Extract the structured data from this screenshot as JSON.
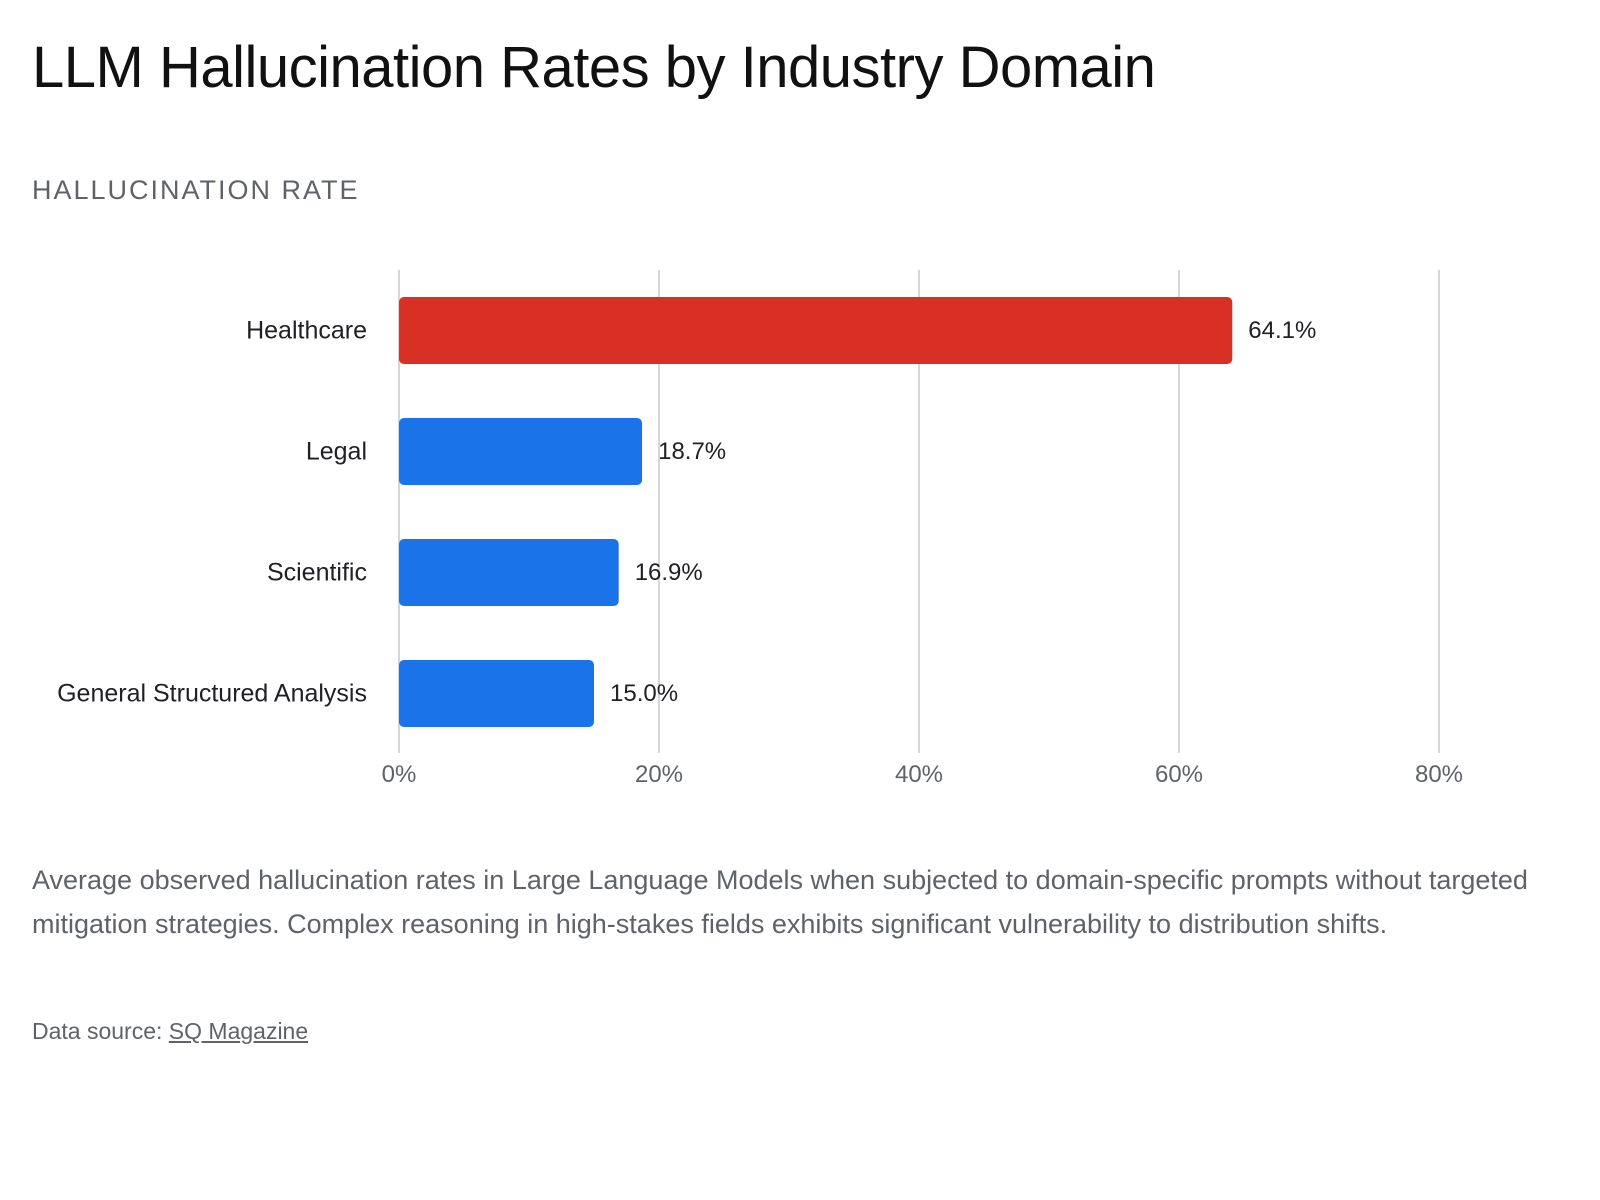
{
  "title": "LLM Hallucination Rates by Industry Domain",
  "axis_caption": "HALLUCINATION RATE",
  "description": "Average observed hallucination rates in Large Language Models when subjected to domain-specific prompts without targeted mitigation strategies. Complex reasoning in high-stakes fields exhibits significant vulnerability to distribution shifts.",
  "source": {
    "prefix": "Data source: ",
    "link_text": "SQ Magazine"
  },
  "colors": {
    "highlight": "#d93025",
    "default": "#1a73e8"
  },
  "chart_data": {
    "type": "bar",
    "orientation": "horizontal",
    "categories": [
      "Healthcare",
      "Legal",
      "Scientific",
      "General Structured Analysis"
    ],
    "values": [
      64.1,
      18.7,
      16.9,
      15.0
    ],
    "value_labels": [
      "64.1%",
      "18.7%",
      "16.9%",
      "15.0%"
    ],
    "highlighted": [
      true,
      false,
      false,
      false
    ],
    "xlim": [
      0,
      80
    ],
    "x_ticks": [
      0,
      20,
      40,
      60,
      80
    ],
    "x_tick_labels": [
      "0%",
      "20%",
      "40%",
      "60%",
      "80%"
    ],
    "grid": true
  }
}
